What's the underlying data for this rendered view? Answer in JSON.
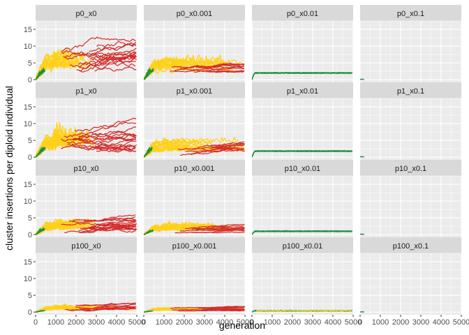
{
  "chart_data": {
    "type": "line",
    "xlabel": "generation",
    "ylabel": "cluster insertions per diploid individual",
    "xlim": [
      0,
      5000
    ],
    "ylim": [
      -0.8,
      17.5
    ],
    "x_ticks": [
      "0",
      "1000",
      "2000",
      "3000",
      "4000",
      "5000"
    ],
    "y_ticks": [
      "0",
      "5",
      "10",
      "15"
    ],
    "grid": true,
    "legend": "none",
    "colors": {
      "panel_background": "#ebebeb",
      "strip_background": "#d9d9d9",
      "grid": "#ffffff",
      "green": "#1e9142",
      "yellow": "#ffd11a",
      "red": "#d42a2a"
    },
    "panels": [
      {
        "label": "p0_x0",
        "row": 0,
        "col": 0,
        "pattern": "full",
        "red_top": 15,
        "red_low": 2,
        "yellow_top": 9,
        "yellow_plateau": 5,
        "green_peak": 3.5
      },
      {
        "label": "p0_x0.001",
        "row": 0,
        "col": 1,
        "pattern": "mid",
        "red_top": 6,
        "red_low": 2,
        "yellow_top": 6.5,
        "yellow_plateau": 4,
        "green_peak": 3.5
      },
      {
        "label": "p0_x0.01",
        "row": 0,
        "col": 2,
        "pattern": "flat",
        "level": 2.0
      },
      {
        "label": "p0_x0.1",
        "row": 0,
        "col": 3,
        "pattern": "stub",
        "level": 0.2
      },
      {
        "label": "p1_x0",
        "row": 1,
        "col": 0,
        "pattern": "full",
        "red_top": 12,
        "red_low": 1.5,
        "yellow_top": 11,
        "yellow_plateau": 4.5,
        "green_peak": 3.0
      },
      {
        "label": "p1_x0.001",
        "row": 1,
        "col": 1,
        "pattern": "mid",
        "red_top": 6.5,
        "red_low": 0.5,
        "yellow_top": 5,
        "yellow_plateau": 3.5,
        "green_peak": 3.0
      },
      {
        "label": "p1_x0.01",
        "row": 1,
        "col": 2,
        "pattern": "flat",
        "level": 1.8
      },
      {
        "label": "p1_x0.1",
        "row": 1,
        "col": 3,
        "pattern": "stub",
        "level": 0.2
      },
      {
        "label": "p10_x0",
        "row": 2,
        "col": 0,
        "pattern": "full",
        "red_top": 6.5,
        "red_low": 0.5,
        "yellow_top": 5,
        "yellow_plateau": 2.5,
        "green_peak": 2.0
      },
      {
        "label": "p10_x0.001",
        "row": 2,
        "col": 1,
        "pattern": "mid",
        "red_top": 3.5,
        "red_low": 0.5,
        "yellow_top": 4,
        "yellow_plateau": 2.0,
        "green_peak": 1.5
      },
      {
        "label": "p10_x0.01",
        "row": 2,
        "col": 2,
        "pattern": "flat",
        "level": 1.0
      },
      {
        "label": "p10_x0.1",
        "row": 2,
        "col": 3,
        "pattern": "stub",
        "level": 0.2
      },
      {
        "label": "p100_x0",
        "row": 3,
        "col": 0,
        "pattern": "low",
        "red_top": 4,
        "red_low": 0.3,
        "yellow_top": 2.5,
        "yellow_plateau": 1.2,
        "green_peak": 0.5
      },
      {
        "label": "p100_x0.001",
        "row": 3,
        "col": 1,
        "pattern": "low",
        "red_top": 2,
        "red_low": 0.3,
        "yellow_top": 1.5,
        "yellow_plateau": 0.8,
        "green_peak": 0.4
      },
      {
        "label": "p100_x0.01",
        "row": 3,
        "col": 2,
        "pattern": "flatmix",
        "level": 0.4
      },
      {
        "label": "p100_x0.1",
        "row": 3,
        "col": 3,
        "pattern": "stub",
        "level": 0.1
      }
    ]
  }
}
